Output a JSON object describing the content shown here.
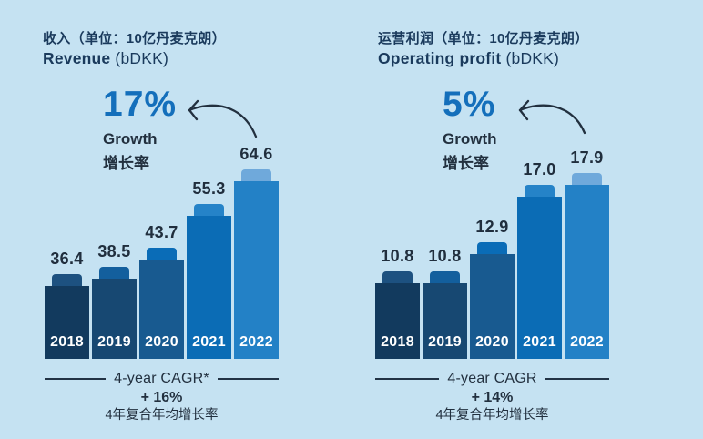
{
  "page": {
    "background_color": "#c5e2f2",
    "dark_text_color": "#22303f",
    "accent_blue": "#146fbb"
  },
  "chart_data": [
    {
      "type": "bar",
      "title_zh": "收入（单位：10亿丹麦克朗）",
      "title_en": "Revenue",
      "title_unit": "(bDKK)",
      "growth_value": "17%",
      "growth_label_en": "Growth",
      "growth_label_zh": "增长率",
      "categories": [
        "2018",
        "2019",
        "2020",
        "2021",
        "2022"
      ],
      "values": [
        36.4,
        38.5,
        43.7,
        55.3,
        64.6
      ],
      "bar_colors": [
        "#123a5e",
        "#174872",
        "#185a90",
        "#0b6cb5",
        "#2381c6"
      ],
      "cap_colors": [
        "#1d5180",
        "#135f9d",
        "#0a6cb7",
        "#2583c8",
        "#6fa9db"
      ],
      "footer_rule_label": "4-year CAGR*",
      "footer_cagr_value": "+ 16%",
      "footer_label_zh": "4年复合年均增长率",
      "axis_hidden": true,
      "value_labels_shown": true
    },
    {
      "type": "bar",
      "title_zh": "运营利润（单位：10亿丹麦克朗）",
      "title_en": "Operating profit",
      "title_unit": "(bDKK)",
      "growth_value": "5%",
      "growth_label_en": "Growth",
      "growth_label_zh": "增长率",
      "categories": [
        "2018",
        "2019",
        "2020",
        "2021",
        "2022"
      ],
      "values": [
        10.8,
        10.8,
        12.9,
        17.0,
        17.9
      ],
      "bar_colors": [
        "#123a5e",
        "#174872",
        "#185a90",
        "#0b6cb5",
        "#2381c6"
      ],
      "cap_colors": [
        "#1d5180",
        "#135f9d",
        "#0a6cb7",
        "#2583c8",
        "#6fa9db"
      ],
      "footer_rule_label": "4-year CAGR",
      "footer_cagr_value": "+ 14%",
      "footer_label_zh": "4年复合年均增长率",
      "axis_hidden": true,
      "value_labels_shown": true
    }
  ]
}
